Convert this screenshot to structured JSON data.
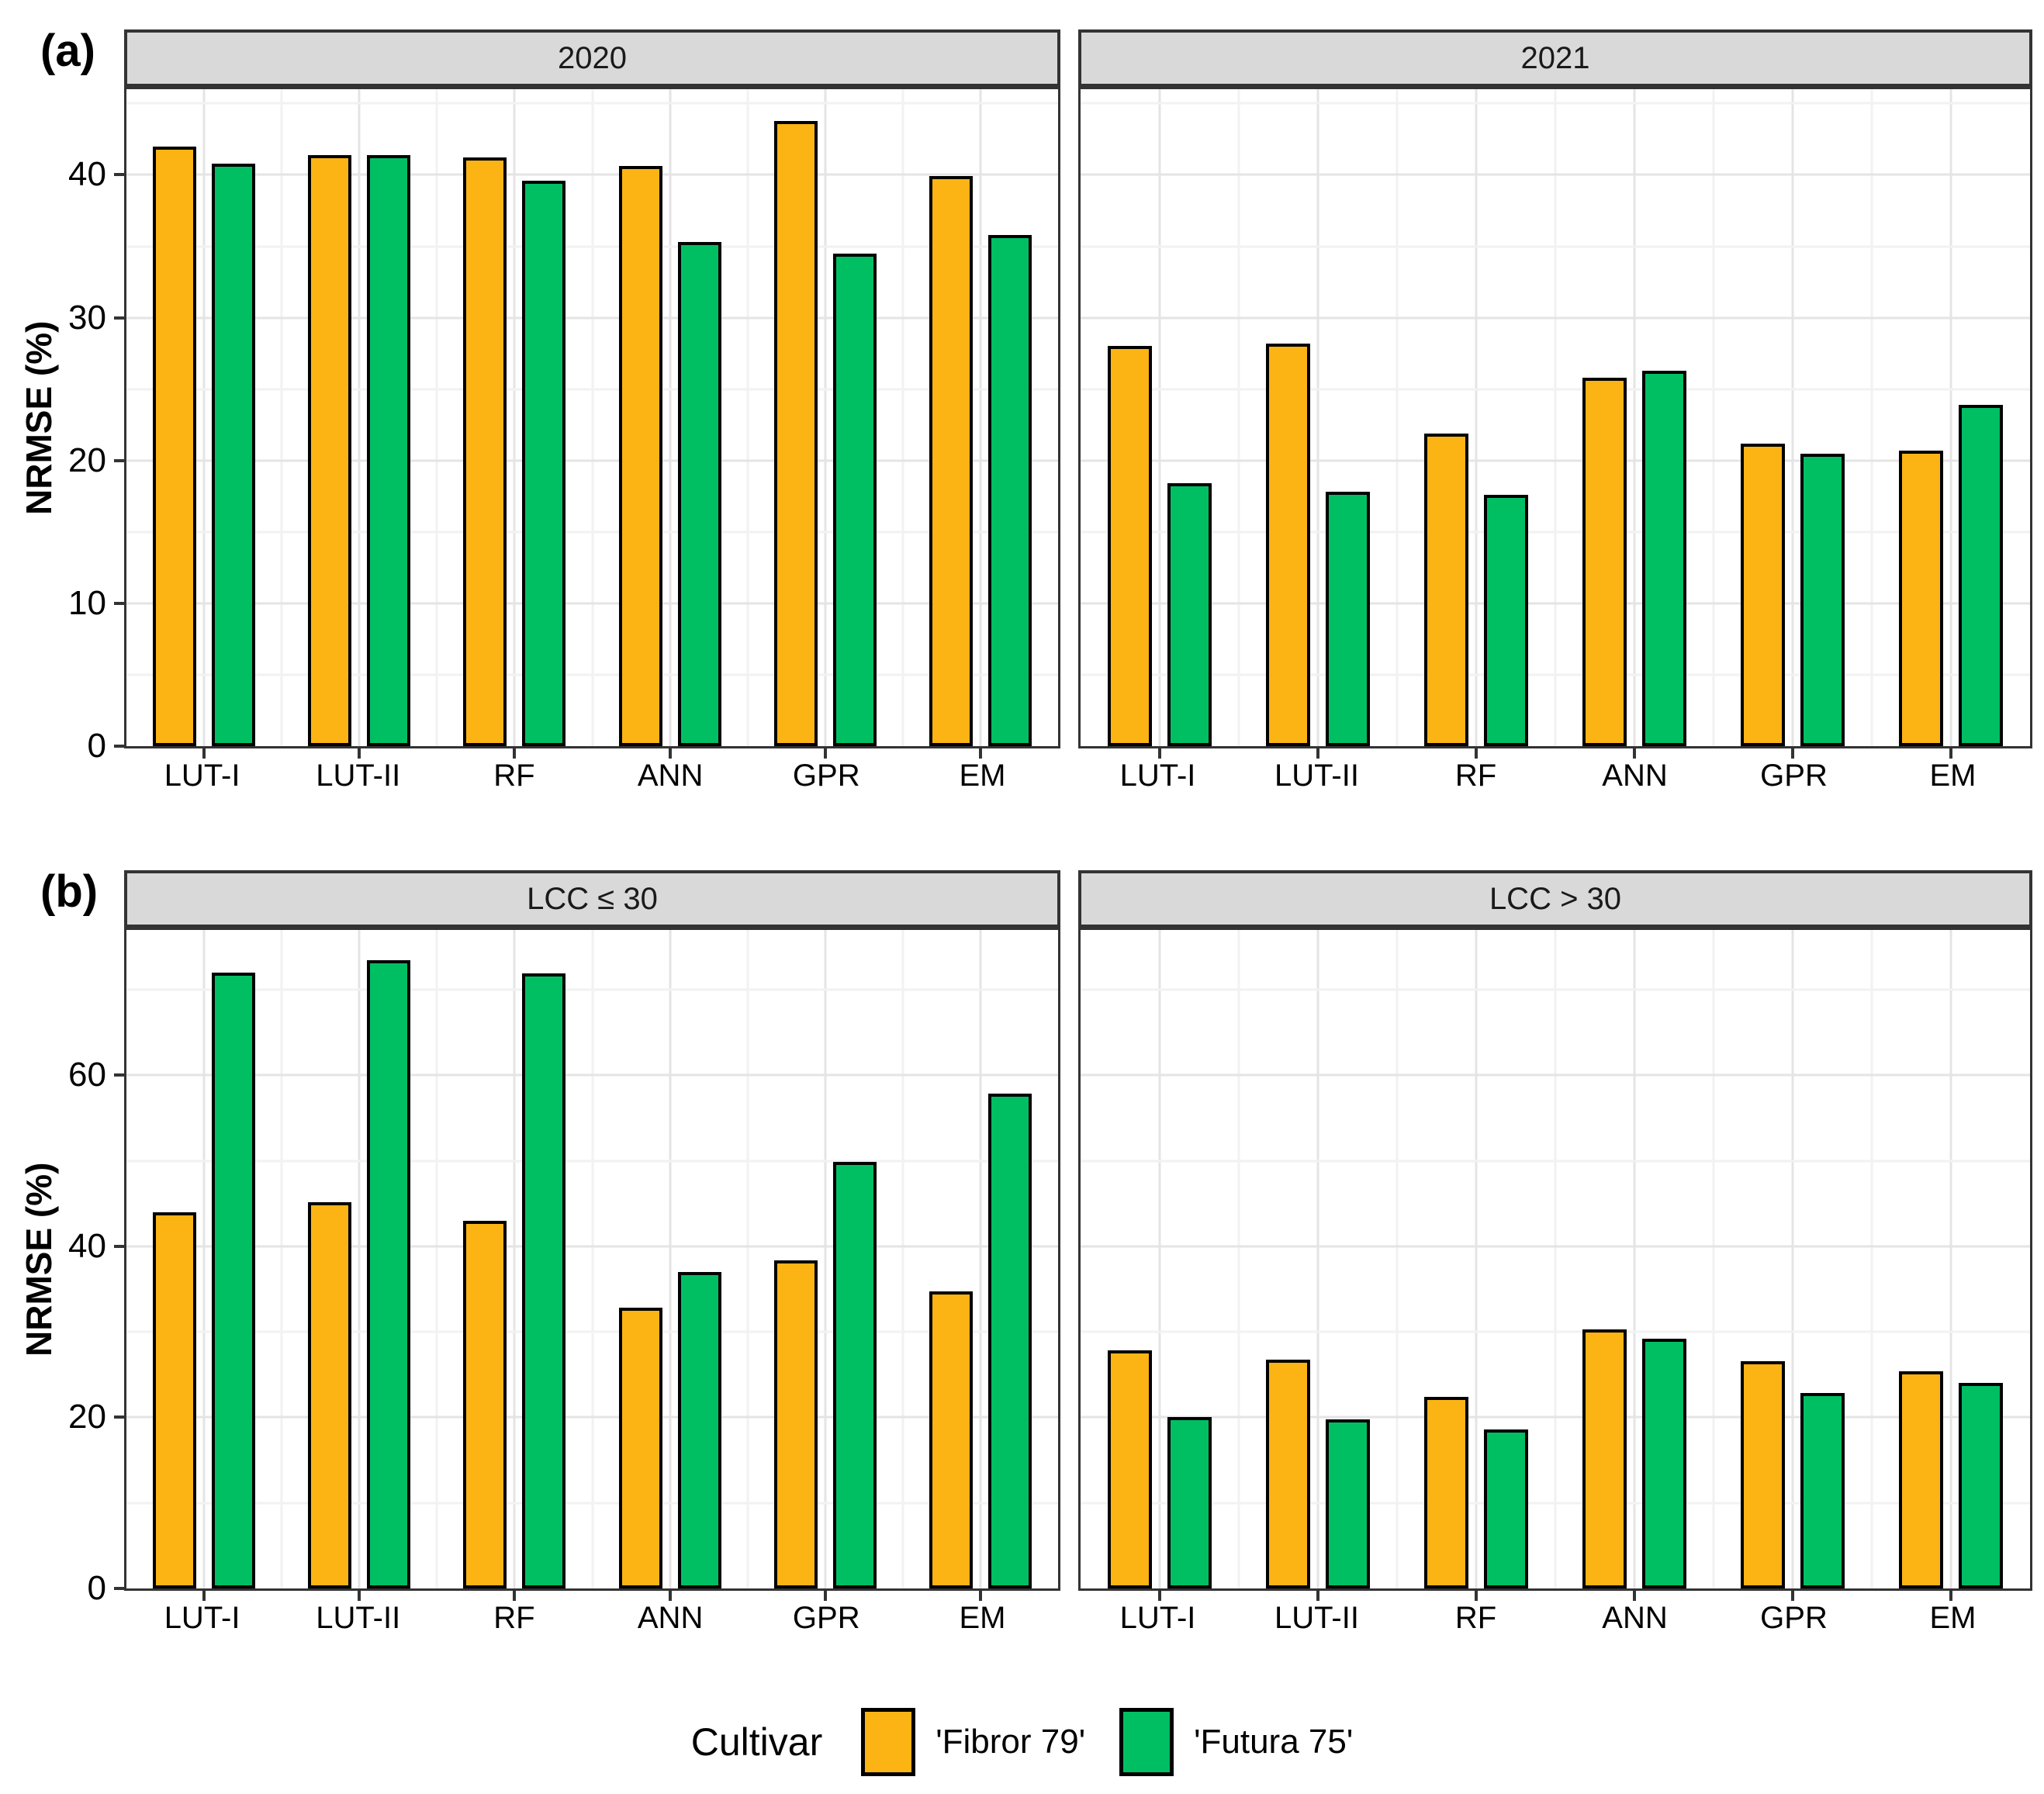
{
  "figure": {
    "panel_a_label": "(a)",
    "panel_b_label": "(b)",
    "y_axis_label": "NRMSE (%)"
  },
  "x_categories": [
    "LUT-I",
    "LUT-II",
    "RF",
    "ANN",
    "GPR",
    "EM"
  ],
  "legend": {
    "title": "Cultivar",
    "entries": [
      {
        "label": "'Fibror 79'",
        "color": "#FCB415"
      },
      {
        "label": "'Futura 75'",
        "color": "#00BF63"
      }
    ]
  },
  "style": {
    "strip_background": "#D9D9D9",
    "panel_border": "#333333",
    "bar_border": "#000000",
    "gridline_major": "#E4E4E4",
    "gridline_minor": "#F2F2F2"
  },
  "chart_data": [
    {
      "type": "bar",
      "panel": "a",
      "facet": "2020",
      "categories": [
        "LUT-I",
        "LUT-II",
        "RF",
        "ANN",
        "GPR",
        "EM"
      ],
      "series": [
        {
          "name": "'Fibror 79'",
          "values": [
            42.0,
            41.4,
            41.2,
            40.6,
            43.8,
            39.9
          ]
        },
        {
          "name": "'Futura 75'",
          "values": [
            40.8,
            41.4,
            39.6,
            35.3,
            34.5,
            35.8
          ]
        }
      ],
      "xlabel": "",
      "ylabel": "NRMSE (%)",
      "ylim": [
        0,
        46
      ],
      "yticks": [
        0,
        10,
        20,
        30,
        40
      ],
      "yticks_minor": [
        5,
        15,
        25,
        35,
        45
      ],
      "grid": true,
      "show_y_axis": true,
      "legend_position": "bottom"
    },
    {
      "type": "bar",
      "panel": "a",
      "facet": "2021",
      "categories": [
        "LUT-I",
        "LUT-II",
        "RF",
        "ANN",
        "GPR",
        "EM"
      ],
      "series": [
        {
          "name": "'Fibror 79'",
          "values": [
            28.0,
            28.2,
            21.9,
            25.8,
            21.2,
            20.7
          ]
        },
        {
          "name": "'Futura 75'",
          "values": [
            18.4,
            17.8,
            17.6,
            26.3,
            20.5,
            23.9
          ]
        }
      ],
      "xlabel": "",
      "ylabel": "NRMSE (%)",
      "ylim": [
        0,
        46
      ],
      "yticks": [
        0,
        10,
        20,
        30,
        40
      ],
      "yticks_minor": [
        5,
        15,
        25,
        35,
        45
      ],
      "grid": true,
      "show_y_axis": false,
      "legend_position": "bottom"
    },
    {
      "type": "bar",
      "panel": "b",
      "facet": "LCC ≤ 30",
      "categories": [
        "LUT-I",
        "LUT-II",
        "RF",
        "ANN",
        "GPR",
        "EM"
      ],
      "series": [
        {
          "name": "'Fibror 79'",
          "values": [
            44.0,
            45.2,
            43.0,
            32.8,
            38.4,
            34.7
          ]
        },
        {
          "name": "'Futura 75'",
          "values": [
            72.0,
            73.5,
            71.9,
            37.0,
            49.9,
            57.9
          ]
        }
      ],
      "xlabel": "",
      "ylabel": "NRMSE (%)",
      "ylim": [
        0,
        77
      ],
      "yticks": [
        0,
        20,
        40,
        60
      ],
      "yticks_minor": [
        10,
        30,
        50,
        70
      ],
      "grid": true,
      "show_y_axis": true,
      "legend_position": "bottom"
    },
    {
      "type": "bar",
      "panel": "b",
      "facet": "LCC > 30",
      "categories": [
        "LUT-I",
        "LUT-II",
        "RF",
        "ANN",
        "GPR",
        "EM"
      ],
      "series": [
        {
          "name": "'Fibror 79'",
          "values": [
            27.8,
            26.8,
            22.4,
            30.3,
            26.6,
            25.4
          ]
        },
        {
          "name": "'Futura 75'",
          "values": [
            20.0,
            19.8,
            18.6,
            29.2,
            22.9,
            24.0
          ]
        }
      ],
      "xlabel": "",
      "ylabel": "NRMSE (%)",
      "ylim": [
        0,
        77
      ],
      "yticks": [
        0,
        20,
        40,
        60
      ],
      "yticks_minor": [
        10,
        30,
        50,
        70
      ],
      "grid": true,
      "show_y_axis": false,
      "legend_position": "bottom"
    }
  ]
}
